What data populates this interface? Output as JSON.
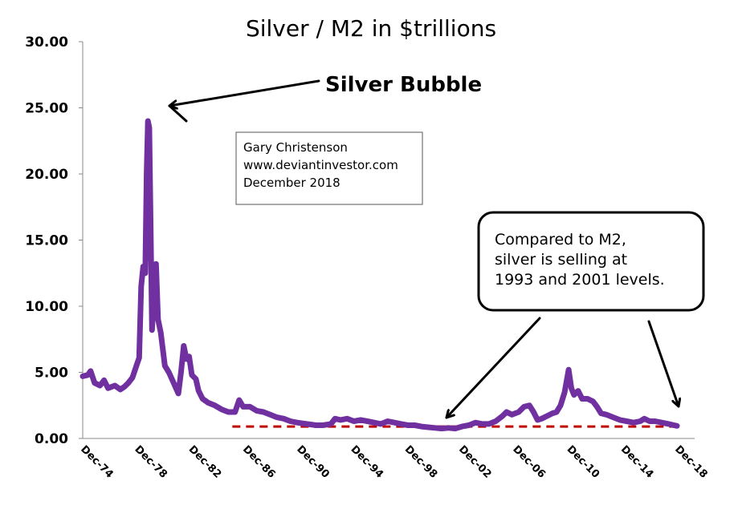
{
  "chart_data": {
    "type": "line",
    "title": "Silver / M2 in $trillions",
    "xlabel": "",
    "ylabel": "",
    "ylim": [
      0,
      30
    ],
    "y_ticks": [
      "0.00",
      "5.00",
      "10.00",
      "15.00",
      "20.00",
      "25.00",
      "30.00"
    ],
    "x_ticks": [
      "Dec-74",
      "Dec-78",
      "Dec-82",
      "Dec-86",
      "Dec-90",
      "Dec-94",
      "Dec-98",
      "Dec-02",
      "Dec-06",
      "Dec-10",
      "Dec-14",
      "Dec-18"
    ],
    "x_range": [
      1974.92,
      2018.92
    ],
    "grid": false,
    "line_color": "#7030A0",
    "reference_line": {
      "value": 0.9,
      "x_start": 1986.0,
      "x_end": 2019.3,
      "color": "#C00000",
      "style": "dashed"
    },
    "series": [
      {
        "values": [
          [
            1974.92,
            4.7
          ],
          [
            1975.3,
            4.8
          ],
          [
            1975.5,
            5.1
          ],
          [
            1975.8,
            4.2
          ],
          [
            1976.2,
            4.0
          ],
          [
            1976.5,
            4.4
          ],
          [
            1976.8,
            3.8
          ],
          [
            1977.3,
            4.0
          ],
          [
            1977.7,
            3.7
          ],
          [
            1978.0,
            3.9
          ],
          [
            1978.3,
            4.2
          ],
          [
            1978.6,
            4.6
          ],
          [
            1978.9,
            5.5
          ],
          [
            1979.1,
            6.1
          ],
          [
            1979.25,
            11.5
          ],
          [
            1979.4,
            13.0
          ],
          [
            1979.55,
            12.5
          ],
          [
            1979.65,
            20.0
          ],
          [
            1979.75,
            24.0
          ],
          [
            1979.85,
            23.5
          ],
          [
            1979.95,
            16.0
          ],
          [
            1980.05,
            8.2
          ],
          [
            1980.2,
            11.0
          ],
          [
            1980.35,
            13.2
          ],
          [
            1980.5,
            9.0
          ],
          [
            1980.7,
            8.0
          ],
          [
            1981.0,
            5.5
          ],
          [
            1981.3,
            5.0
          ],
          [
            1981.7,
            4.1
          ],
          [
            1982.0,
            3.4
          ],
          [
            1982.2,
            5.0
          ],
          [
            1982.4,
            7.0
          ],
          [
            1982.6,
            6.0
          ],
          [
            1982.8,
            6.2
          ],
          [
            1983.0,
            4.8
          ],
          [
            1983.3,
            4.5
          ],
          [
            1983.5,
            3.6
          ],
          [
            1983.8,
            3.0
          ],
          [
            1984.2,
            2.7
          ],
          [
            1984.7,
            2.5
          ],
          [
            1985.2,
            2.2
          ],
          [
            1985.7,
            2.0
          ],
          [
            1986.2,
            2.0
          ],
          [
            1986.5,
            2.9
          ],
          [
            1986.8,
            2.4
          ],
          [
            1987.3,
            2.4
          ],
          [
            1987.8,
            2.1
          ],
          [
            1988.3,
            2.0
          ],
          [
            1988.8,
            1.8
          ],
          [
            1989.3,
            1.6
          ],
          [
            1989.8,
            1.5
          ],
          [
            1990.3,
            1.3
          ],
          [
            1990.8,
            1.2
          ],
          [
            1991.5,
            1.1
          ],
          [
            1992.2,
            1.0
          ],
          [
            1992.7,
            1.0
          ],
          [
            1993.3,
            1.1
          ],
          [
            1993.6,
            1.5
          ],
          [
            1994.0,
            1.4
          ],
          [
            1994.5,
            1.5
          ],
          [
            1995.0,
            1.3
          ],
          [
            1995.5,
            1.4
          ],
          [
            1996.0,
            1.3
          ],
          [
            1996.5,
            1.2
          ],
          [
            1997.0,
            1.1
          ],
          [
            1997.5,
            1.3
          ],
          [
            1998.0,
            1.2
          ],
          [
            1998.5,
            1.1
          ],
          [
            1999.0,
            1.0
          ],
          [
            1999.5,
            1.0
          ],
          [
            2000.0,
            0.9
          ],
          [
            2000.5,
            0.85
          ],
          [
            2001.0,
            0.8
          ],
          [
            2001.5,
            0.75
          ],
          [
            2002.0,
            0.8
          ],
          [
            2002.5,
            0.75
          ],
          [
            2003.0,
            0.9
          ],
          [
            2003.5,
            1.0
          ],
          [
            2004.0,
            1.2
          ],
          [
            2004.5,
            1.1
          ],
          [
            2005.0,
            1.1
          ],
          [
            2005.5,
            1.3
          ],
          [
            2006.0,
            1.7
          ],
          [
            2006.3,
            2.0
          ],
          [
            2006.7,
            1.8
          ],
          [
            2007.2,
            2.0
          ],
          [
            2007.6,
            2.4
          ],
          [
            2008.0,
            2.5
          ],
          [
            2008.3,
            2.0
          ],
          [
            2008.6,
            1.4
          ],
          [
            2008.9,
            1.5
          ],
          [
            2009.3,
            1.7
          ],
          [
            2009.7,
            1.9
          ],
          [
            2010.0,
            2.0
          ],
          [
            2010.3,
            2.5
          ],
          [
            2010.6,
            3.5
          ],
          [
            2010.9,
            5.2
          ],
          [
            2011.1,
            3.8
          ],
          [
            2011.3,
            3.3
          ],
          [
            2011.6,
            3.6
          ],
          [
            2011.9,
            3.0
          ],
          [
            2012.3,
            3.0
          ],
          [
            2012.7,
            2.8
          ],
          [
            2013.0,
            2.4
          ],
          [
            2013.3,
            1.9
          ],
          [
            2013.7,
            1.8
          ],
          [
            2014.2,
            1.6
          ],
          [
            2014.7,
            1.4
          ],
          [
            2015.2,
            1.3
          ],
          [
            2015.7,
            1.2
          ],
          [
            2016.2,
            1.3
          ],
          [
            2016.5,
            1.5
          ],
          [
            2016.9,
            1.3
          ],
          [
            2017.3,
            1.3
          ],
          [
            2017.8,
            1.2
          ],
          [
            2018.3,
            1.1
          ],
          [
            2018.7,
            1.0
          ],
          [
            2018.92,
            0.95
          ]
        ]
      }
    ],
    "annotations": {
      "bubble_label": "Silver Bubble",
      "credit": [
        "Gary Christenson",
        "www.deviantinvestor.com",
        "December 2018"
      ],
      "callout": [
        "Compared to M2,",
        "silver is selling at",
        "1993 and 2001 levels."
      ]
    }
  }
}
